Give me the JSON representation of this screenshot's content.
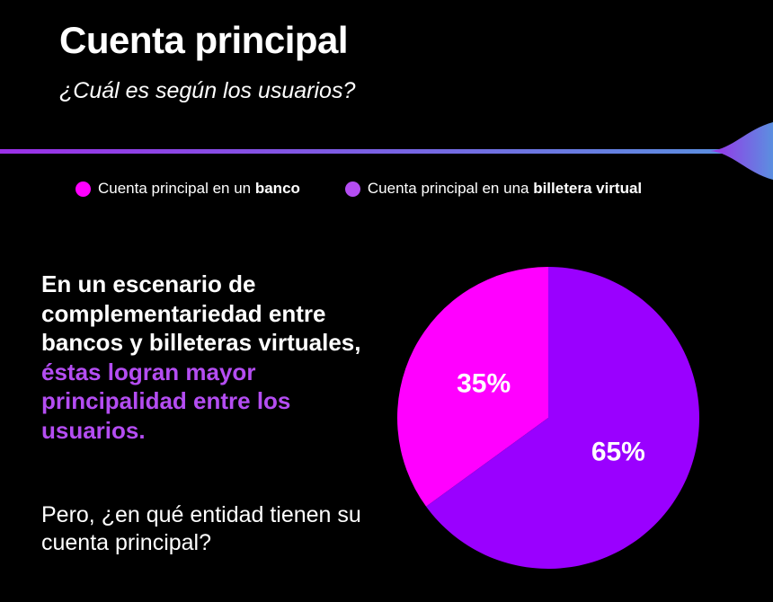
{
  "header": {
    "title": "Cuenta principal",
    "subtitle": "¿Cuál es según los usuarios?"
  },
  "legend": [
    {
      "prefix": "Cuenta principal en un ",
      "bold": "banco",
      "color": "#ff00ff"
    },
    {
      "prefix": "Cuenta principal en una ",
      "bold": "billetera virtual",
      "color": "#b44df2"
    }
  ],
  "body": {
    "line1": "En un escenario de complementariedad entre bancos y billeteras virtuales,",
    "line2": "éstas logran mayor principalidad entre los usuarios.",
    "question": "Pero, ¿en qué entidad tienen su cuenta principal?"
  },
  "colors": {
    "background": "#000000",
    "banco": "#ff00ff",
    "billetera": "#9a00ff",
    "highlight": "#b44df2",
    "divider_start": "#9b30e8",
    "divider_end": "#5b8fe0"
  },
  "chart_data": {
    "type": "pie",
    "title": "",
    "slices": [
      {
        "label": "Cuenta principal en un banco",
        "value": 35,
        "display": "35%",
        "color": "#ff00ff"
      },
      {
        "label": "Cuenta principal en una billetera virtual",
        "value": 65,
        "display": "65%",
        "color": "#9a00ff"
      }
    ],
    "start_angle_deg": 0,
    "direction": "counterclockwise",
    "legend_position": "top"
  }
}
